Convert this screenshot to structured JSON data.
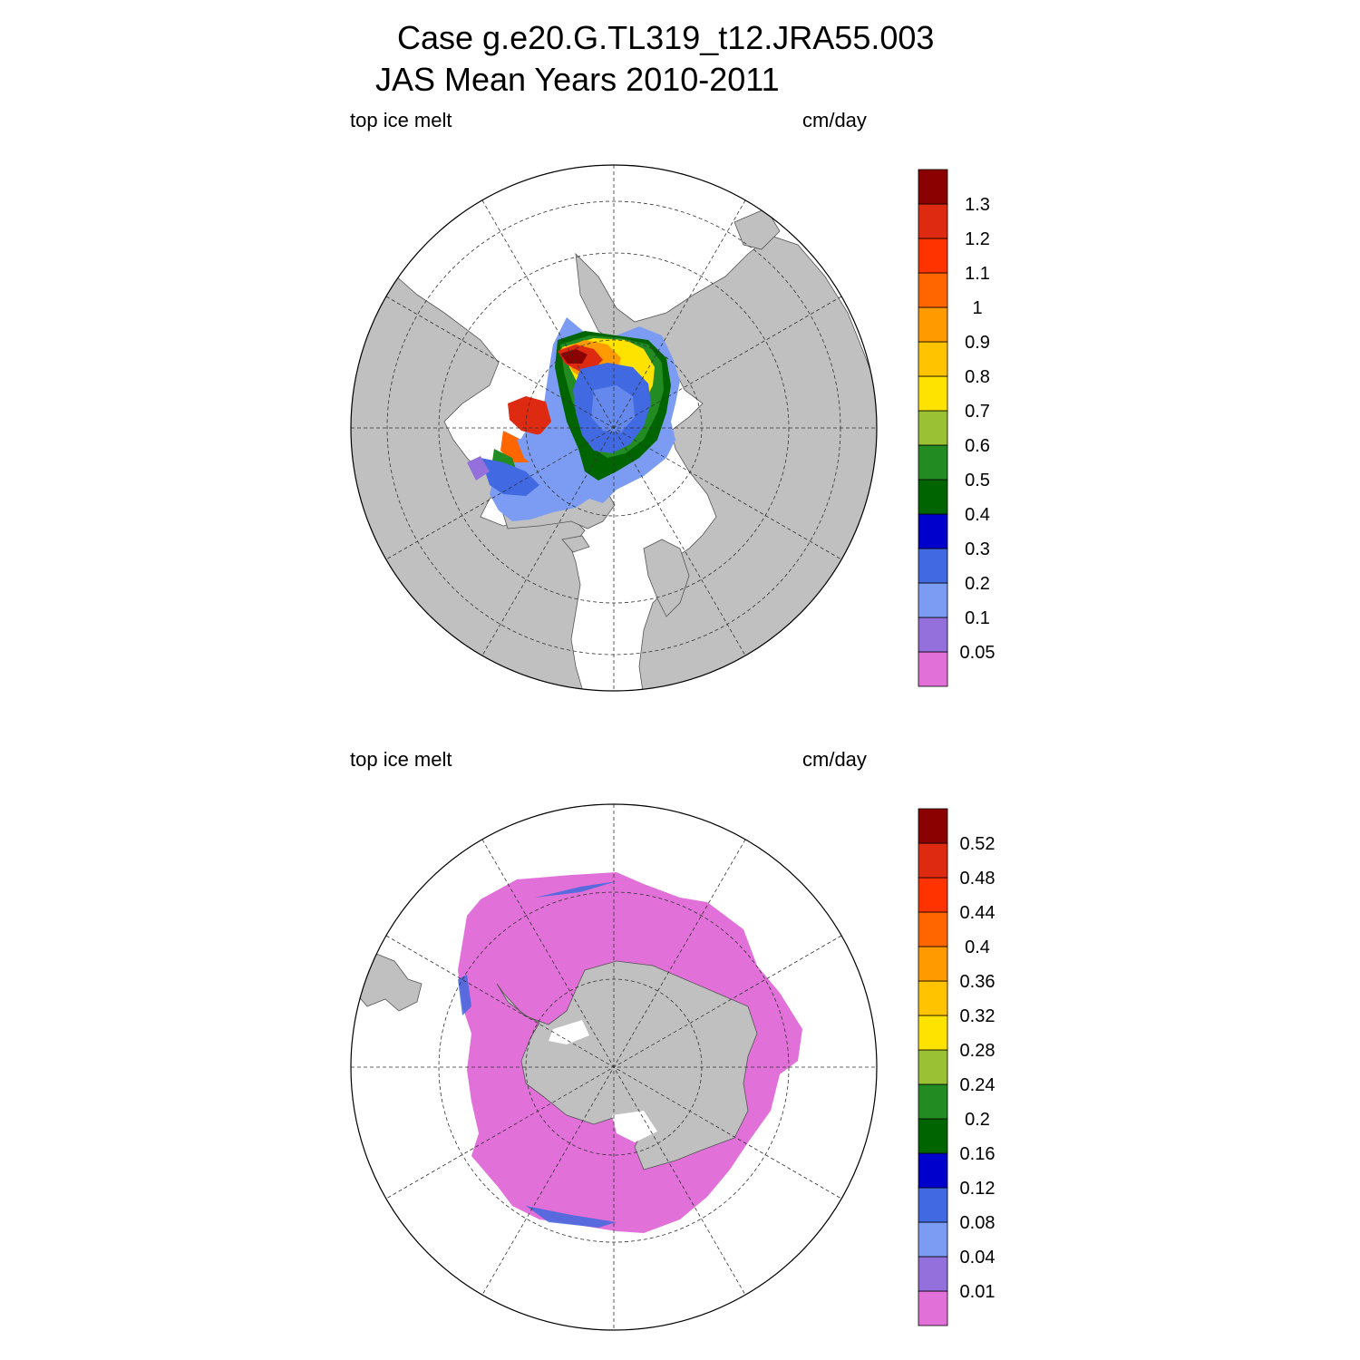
{
  "title": {
    "line1": "Case g.e20.G.TL319_t12.JRA55.003",
    "line2": "JAS Mean   Years 2010-2011"
  },
  "panels": [
    {
      "id": "north",
      "left_label": "top ice melt",
      "right_label": "cm/day",
      "hemisphere": "Arctic (north polar stereographic)",
      "colorbar": {
        "labels": [
          "0.05",
          "0.1",
          "0.2",
          "0.3",
          "0.4",
          "0.5",
          "0.6",
          "0.7",
          "0.8",
          "0.9",
          "1",
          "1.1",
          "1.2",
          "1.3"
        ]
      }
    },
    {
      "id": "south",
      "left_label": "top ice melt",
      "right_label": "cm/day",
      "hemisphere": "Antarctic (south polar stereographic)",
      "colorbar": {
        "labels": [
          "0.01",
          "0.04",
          "0.08",
          "0.12",
          "0.16",
          "0.2",
          "0.24",
          "0.28",
          "0.32",
          "0.36",
          "0.4",
          "0.44",
          "0.48",
          "0.52"
        ]
      }
    }
  ],
  "colors": {
    "bins": [
      "#e170d8",
      "#9370db",
      "#7b9cf2",
      "#4169e1",
      "#0000cd",
      "#006400",
      "#228b22",
      "#9ac034",
      "#ffe300",
      "#ffc300",
      "#ff9a00",
      "#ff6600",
      "#ff3300",
      "#dd2a10",
      "#8b0000"
    ],
    "land": "#c0c0c0",
    "ocean": "#ffffff"
  }
}
